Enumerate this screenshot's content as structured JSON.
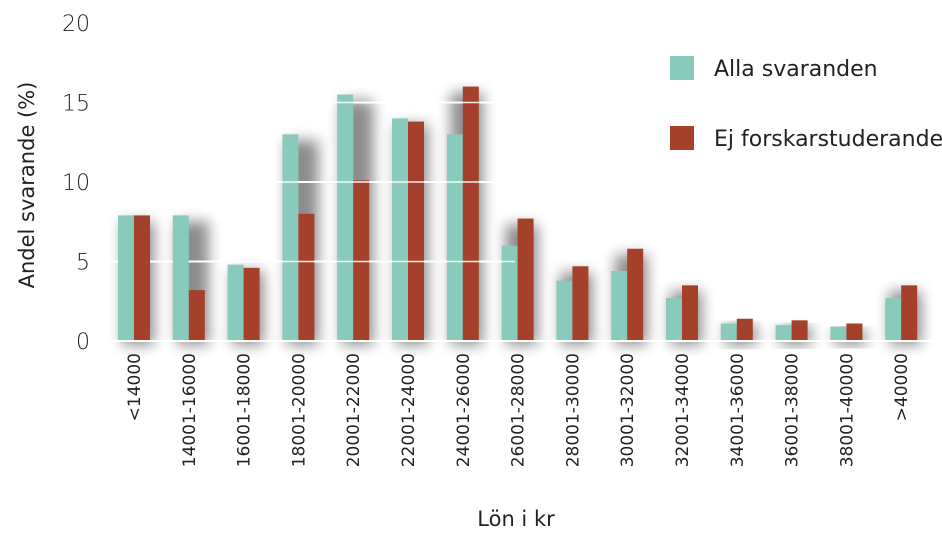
{
  "chart_data": {
    "type": "bar",
    "xlabel": "Lön i kr",
    "ylabel": "Andel svarande (%)",
    "ylim": [
      0,
      20
    ],
    "yticks": [
      "0",
      "5",
      "10",
      "15",
      "20"
    ],
    "grid": true,
    "legend_position": "top-right",
    "categories": [
      "<14000",
      "14001-16000",
      "16001-18000",
      "18001-20000",
      "20001-22000",
      "22001-24000",
      "24001-26000",
      "26001-28000",
      "28001-30000",
      "30001-32000",
      "32001-34000",
      "34001-36000",
      "36001-38000",
      "38001-40000",
      ">40000"
    ],
    "series": [
      {
        "name": "Alla svaranden",
        "color": "#88cbbd",
        "values": [
          7.9,
          7.9,
          4.8,
          13.0,
          15.5,
          14.0,
          13.0,
          6.0,
          3.8,
          4.4,
          2.7,
          1.1,
          1.0,
          0.9,
          2.7
        ]
      },
      {
        "name": "Ej forskarstuderande",
        "color": "#a5402a",
        "values": [
          7.9,
          3.2,
          4.6,
          8.0,
          10.1,
          13.8,
          16.0,
          7.7,
          4.7,
          5.8,
          3.5,
          1.4,
          1.3,
          1.1,
          3.5
        ]
      }
    ]
  }
}
